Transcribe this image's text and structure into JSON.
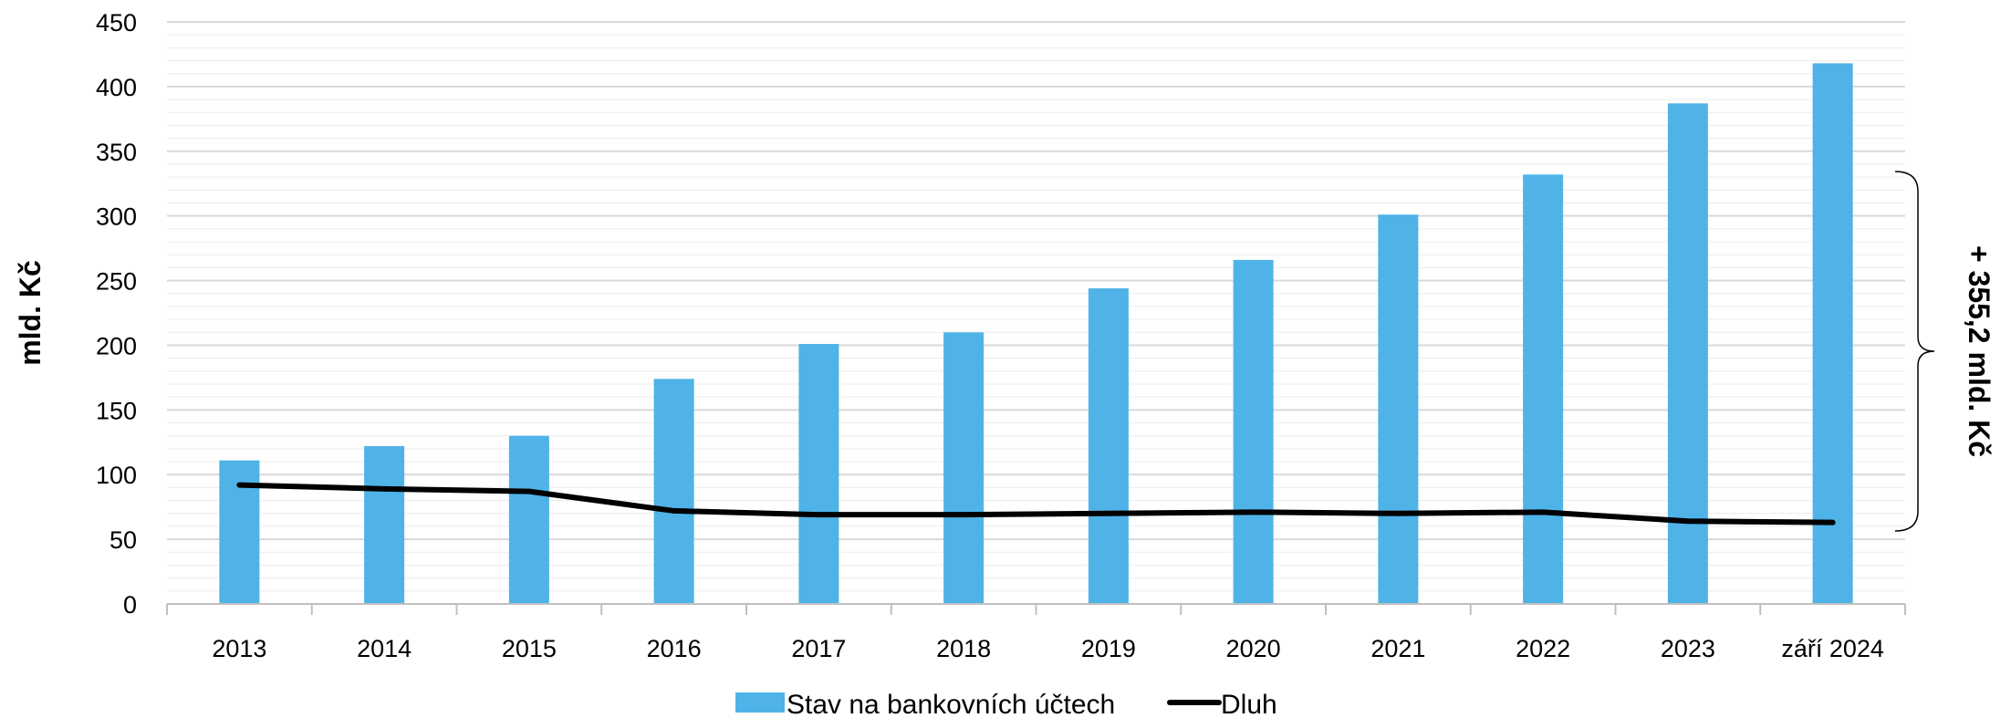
{
  "chart_data": {
    "type": "bar",
    "categories": [
      "2013",
      "2014",
      "2015",
      "2016",
      "2017",
      "2018",
      "2019",
      "2020",
      "2021",
      "2022",
      "2023",
      "září 2024"
    ],
    "series": [
      {
        "name": "Stav na bankovních účtech",
        "type": "bar",
        "color": "#4FB3E8",
        "values": [
          111,
          122,
          130,
          174,
          201,
          210,
          244,
          266,
          301,
          332,
          387,
          418
        ]
      },
      {
        "name": "Dluh",
        "type": "line",
        "color": "#000000",
        "values": [
          92,
          89,
          87,
          72,
          69,
          69,
          70,
          71,
          70,
          71,
          64,
          63
        ]
      }
    ],
    "ylabel": "mld. Kč",
    "xlabel": "",
    "ylim": [
      0,
      450
    ],
    "yticks": [
      0,
      50,
      100,
      150,
      200,
      250,
      300,
      350,
      400,
      450
    ],
    "grid": true,
    "legend_position": "bottom",
    "annotation": {
      "text": "+ 355,2 mld. Kč",
      "range": [
        63,
        418
      ]
    }
  }
}
